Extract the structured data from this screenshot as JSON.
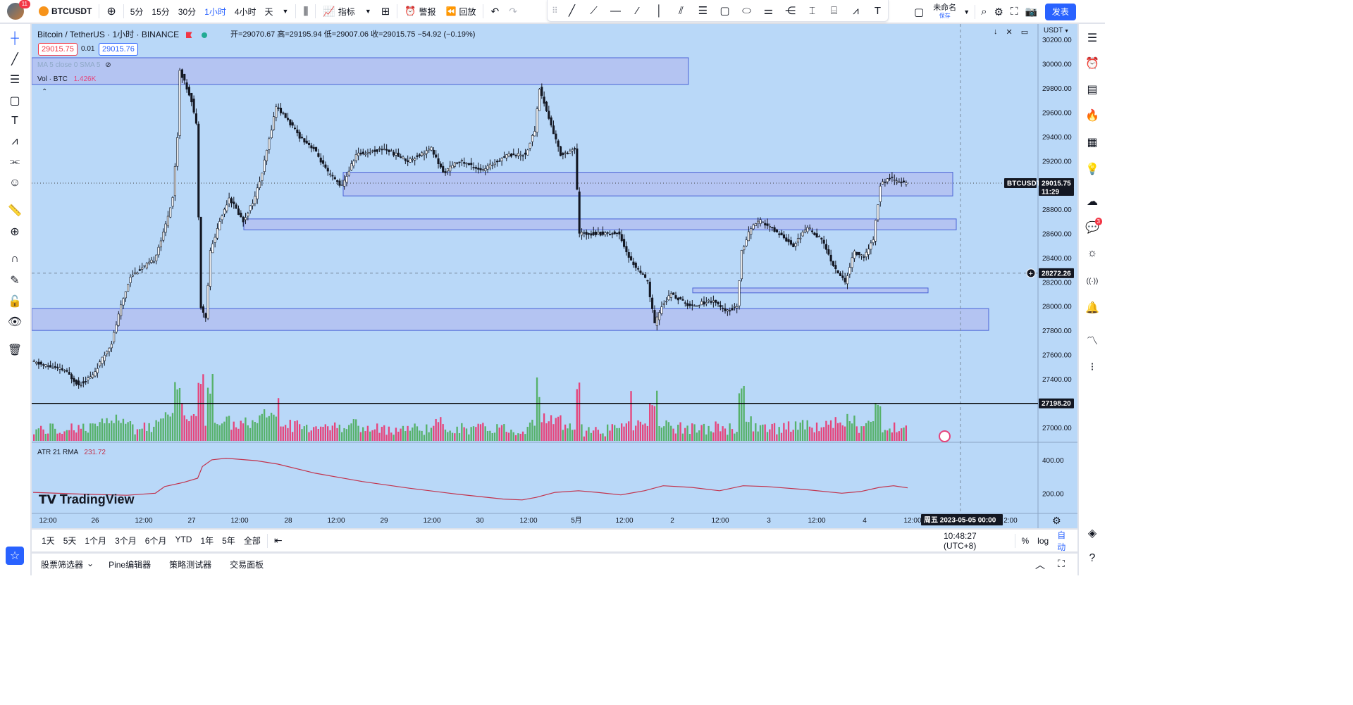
{
  "topbar": {
    "symbol": "BTCUSDT",
    "avatar_badge": "11",
    "add_icon": "plus-circle-icon",
    "timeframes": [
      {
        "label": "5分",
        "active": false
      },
      {
        "label": "15分",
        "active": false
      },
      {
        "label": "30分",
        "active": false
      },
      {
        "label": "1小时",
        "active": true
      },
      {
        "label": "4小时",
        "active": false
      },
      {
        "label": "天",
        "active": false
      }
    ],
    "indicators_label": "指标",
    "alert_label": "警报",
    "replay_label": "回放",
    "layout_name": "未命名",
    "layout_sub": "保存",
    "publish_label": "发表"
  },
  "drawing_tools": [
    "trend-line-icon",
    "ray-icon",
    "horizontal-line-icon",
    "extended-line-icon",
    "vertical-line-icon",
    "parallel-channel-icon",
    "fib-retracement-icon",
    "rectangle-icon",
    "rotated-rectangle-icon",
    "gann-icon",
    "pitchfork-icon",
    "text-range-icon",
    "price-range-icon",
    "pattern-icon",
    "text-icon"
  ],
  "chart": {
    "title": "Bitcoin / TetherUS · 1小时 · BINANCE",
    "ohlc": "开=29070.67 高=29195.94 低=29007.06 收=29015.75 −54.92 (−0.19%)",
    "bid": "29015.75",
    "spread": "0.01",
    "ask": "29015.76",
    "ma_label": "MA 5 close 0 SMA 5",
    "vol_label": "Vol · BTC",
    "vol_value": "1.426K",
    "atr_label": "ATR 21 RMA",
    "atr_value": "231.72",
    "currency": "USDT",
    "price_ticks": [
      "30200.00",
      "30000.00",
      "29800.00",
      "29600.00",
      "29400.00",
      "29200.00",
      "28800.00",
      "28600.00",
      "28400.00",
      "28200.00",
      "28000.00",
      "27800.00",
      "27600.00",
      "27400.00",
      "27000.00"
    ],
    "atr_ticks": [
      "400.00",
      "200.00"
    ],
    "time_ticks": [
      "12:00",
      "26",
      "12:00",
      "27",
      "12:00",
      "28",
      "12:00",
      "29",
      "12:00",
      "30",
      "12:00",
      "5月",
      "12:00",
      "2",
      "12:00",
      "3",
      "12:00",
      "4",
      "12:00",
      "2:00"
    ],
    "last_price_symbol": "BTCUSDT",
    "last_price": "29015.75",
    "countdown": "11:29",
    "crosshair_price": "28272.26",
    "hline_price": "27198.20",
    "crosshair_date": "周五 2023-05-05   00:00",
    "watermark": "TradingView",
    "colors": {
      "up": "#4caf50",
      "down": "#131722",
      "vol_up": "#56b16a",
      "vol_down": "#e5457c",
      "zone": "#b3bdf0",
      "zone_border": "#4a63d6",
      "atr": "#c2334d",
      "bg": "#b9d8f8"
    }
  },
  "chart_data": {
    "type": "candlestick",
    "title": "Bitcoin / TetherUS · 1小时 · BINANCE",
    "last_close": 29015.75,
    "ylim": [
      26900,
      30300
    ],
    "horizontal_line": 27198.2,
    "zones": [
      {
        "from": 29830,
        "to": 30050
      },
      {
        "from": 28910,
        "to": 29105
      },
      {
        "from": 28630,
        "to": 28720
      },
      {
        "from": 28110,
        "to": 28150
      },
      {
        "from": 27800,
        "to": 27980
      }
    ],
    "path_keypoints": [
      [
        0,
        27540
      ],
      [
        14,
        27470
      ],
      [
        20,
        27350
      ],
      [
        26,
        27430
      ],
      [
        34,
        27700
      ],
      [
        38,
        28000
      ],
      [
        42,
        28250
      ],
      [
        52,
        28380
      ],
      [
        56,
        28600
      ],
      [
        60,
        28900
      ],
      [
        62,
        29400
      ],
      [
        63,
        29950
      ],
      [
        66,
        29800
      ],
      [
        68,
        29700
      ],
      [
        70,
        29500
      ],
      [
        72,
        28000
      ],
      [
        74,
        27900
      ],
      [
        76,
        28450
      ],
      [
        80,
        28700
      ],
      [
        84,
        28900
      ],
      [
        90,
        28700
      ],
      [
        95,
        28900
      ],
      [
        98,
        29100
      ],
      [
        104,
        29650
      ],
      [
        108,
        29560
      ],
      [
        114,
        29400
      ],
      [
        120,
        29300
      ],
      [
        126,
        29100
      ],
      [
        132,
        28990
      ],
      [
        138,
        29250
      ],
      [
        150,
        29300
      ],
      [
        160,
        29200
      ],
      [
        170,
        29300
      ],
      [
        175,
        29100
      ],
      [
        182,
        29200
      ],
      [
        192,
        29120
      ],
      [
        202,
        29250
      ],
      [
        210,
        29250
      ],
      [
        214,
        29450
      ],
      [
        216,
        29800
      ],
      [
        220,
        29550
      ],
      [
        225,
        29250
      ],
      [
        231,
        29300
      ],
      [
        233,
        28600
      ],
      [
        240,
        28600
      ],
      [
        250,
        28600
      ],
      [
        254,
        28400
      ],
      [
        262,
        28200
      ],
      [
        265,
        27850
      ],
      [
        268,
        28000
      ],
      [
        272,
        28100
      ],
      [
        280,
        28000
      ],
      [
        290,
        28050
      ],
      [
        295,
        27950
      ],
      [
        300,
        28000
      ],
      [
        302,
        28450
      ],
      [
        306,
        28650
      ],
      [
        310,
        28700
      ],
      [
        318,
        28600
      ],
      [
        324,
        28500
      ],
      [
        330,
        28650
      ],
      [
        336,
        28550
      ],
      [
        342,
        28300
      ],
      [
        346,
        28200
      ],
      [
        350,
        28450
      ],
      [
        354,
        28400
      ],
      [
        358,
        28550
      ],
      [
        361,
        29000
      ],
      [
        365,
        29060
      ],
      [
        369,
        29020
      ]
    ],
    "atr_keypoints": [
      [
        0,
        205
      ],
      [
        20,
        195
      ],
      [
        40,
        188
      ],
      [
        52,
        200
      ],
      [
        56,
        240
      ],
      [
        64,
        265
      ],
      [
        70,
        290
      ],
      [
        72,
        360
      ],
      [
        76,
        400
      ],
      [
        82,
        410
      ],
      [
        95,
        395
      ],
      [
        104,
        375
      ],
      [
        120,
        320
      ],
      [
        140,
        270
      ],
      [
        160,
        230
      ],
      [
        180,
        195
      ],
      [
        200,
        165
      ],
      [
        208,
        160
      ],
      [
        214,
        175
      ],
      [
        222,
        205
      ],
      [
        232,
        215
      ],
      [
        240,
        205
      ],
      [
        250,
        190
      ],
      [
        260,
        215
      ],
      [
        268,
        245
      ],
      [
        280,
        235
      ],
      [
        292,
        215
      ],
      [
        302,
        245
      ],
      [
        312,
        240
      ],
      [
        330,
        220
      ],
      [
        344,
        200
      ],
      [
        352,
        210
      ],
      [
        360,
        235
      ],
      [
        366,
        245
      ],
      [
        372,
        232
      ]
    ],
    "atr_ylim": [
      100,
      480
    ],
    "bars": 372
  },
  "left_tools": [
    "crosshair-icon",
    "trend-line-icon",
    "fib-icon",
    "rectangle-icon",
    "text-icon",
    "pattern-icon",
    "prediction-icon",
    "emoji-icon",
    "ruler-icon",
    "zoom-icon",
    "magnet-icon",
    "lock-draw-icon",
    "lock-icon",
    "eye-icon",
    "trash-icon"
  ],
  "right_tools": [
    {
      "icon": "watchlist-icon",
      "badge": ""
    },
    {
      "icon": "alarm-clock-icon",
      "badge": ""
    },
    {
      "icon": "news-icon",
      "badge": ""
    },
    {
      "icon": "hotlist-icon",
      "badge": ""
    },
    {
      "icon": "calendar-icon",
      "badge": ""
    },
    {
      "icon": "ideas-icon",
      "badge": ""
    },
    {
      "icon": "chat-bubbles-icon",
      "badge": ""
    },
    {
      "icon": "chat-icon",
      "badge": "3"
    },
    {
      "icon": "lightbulb-icon",
      "badge": ""
    },
    {
      "icon": "broadcast-icon",
      "badge": ""
    },
    {
      "icon": "bell-icon",
      "badge": ""
    },
    {
      "icon": "trend-icon",
      "badge": ""
    },
    {
      "icon": "orderbook-icon",
      "badge": ""
    },
    {
      "icon": "layers-icon",
      "badge": ""
    },
    {
      "icon": "help-icon",
      "badge": ""
    }
  ],
  "bottombar": {
    "ranges": [
      "1天",
      "5天",
      "1个月",
      "3个月",
      "6个月",
      "YTD",
      "1年",
      "5年",
      "全部"
    ],
    "clock": "10:48:27 (UTC+8)",
    "percent": "%",
    "log": "log",
    "auto": "自动"
  },
  "panelbar": {
    "tabs": [
      "股票筛选器",
      "Pine编辑器",
      "策略测试器",
      "交易面板"
    ]
  }
}
